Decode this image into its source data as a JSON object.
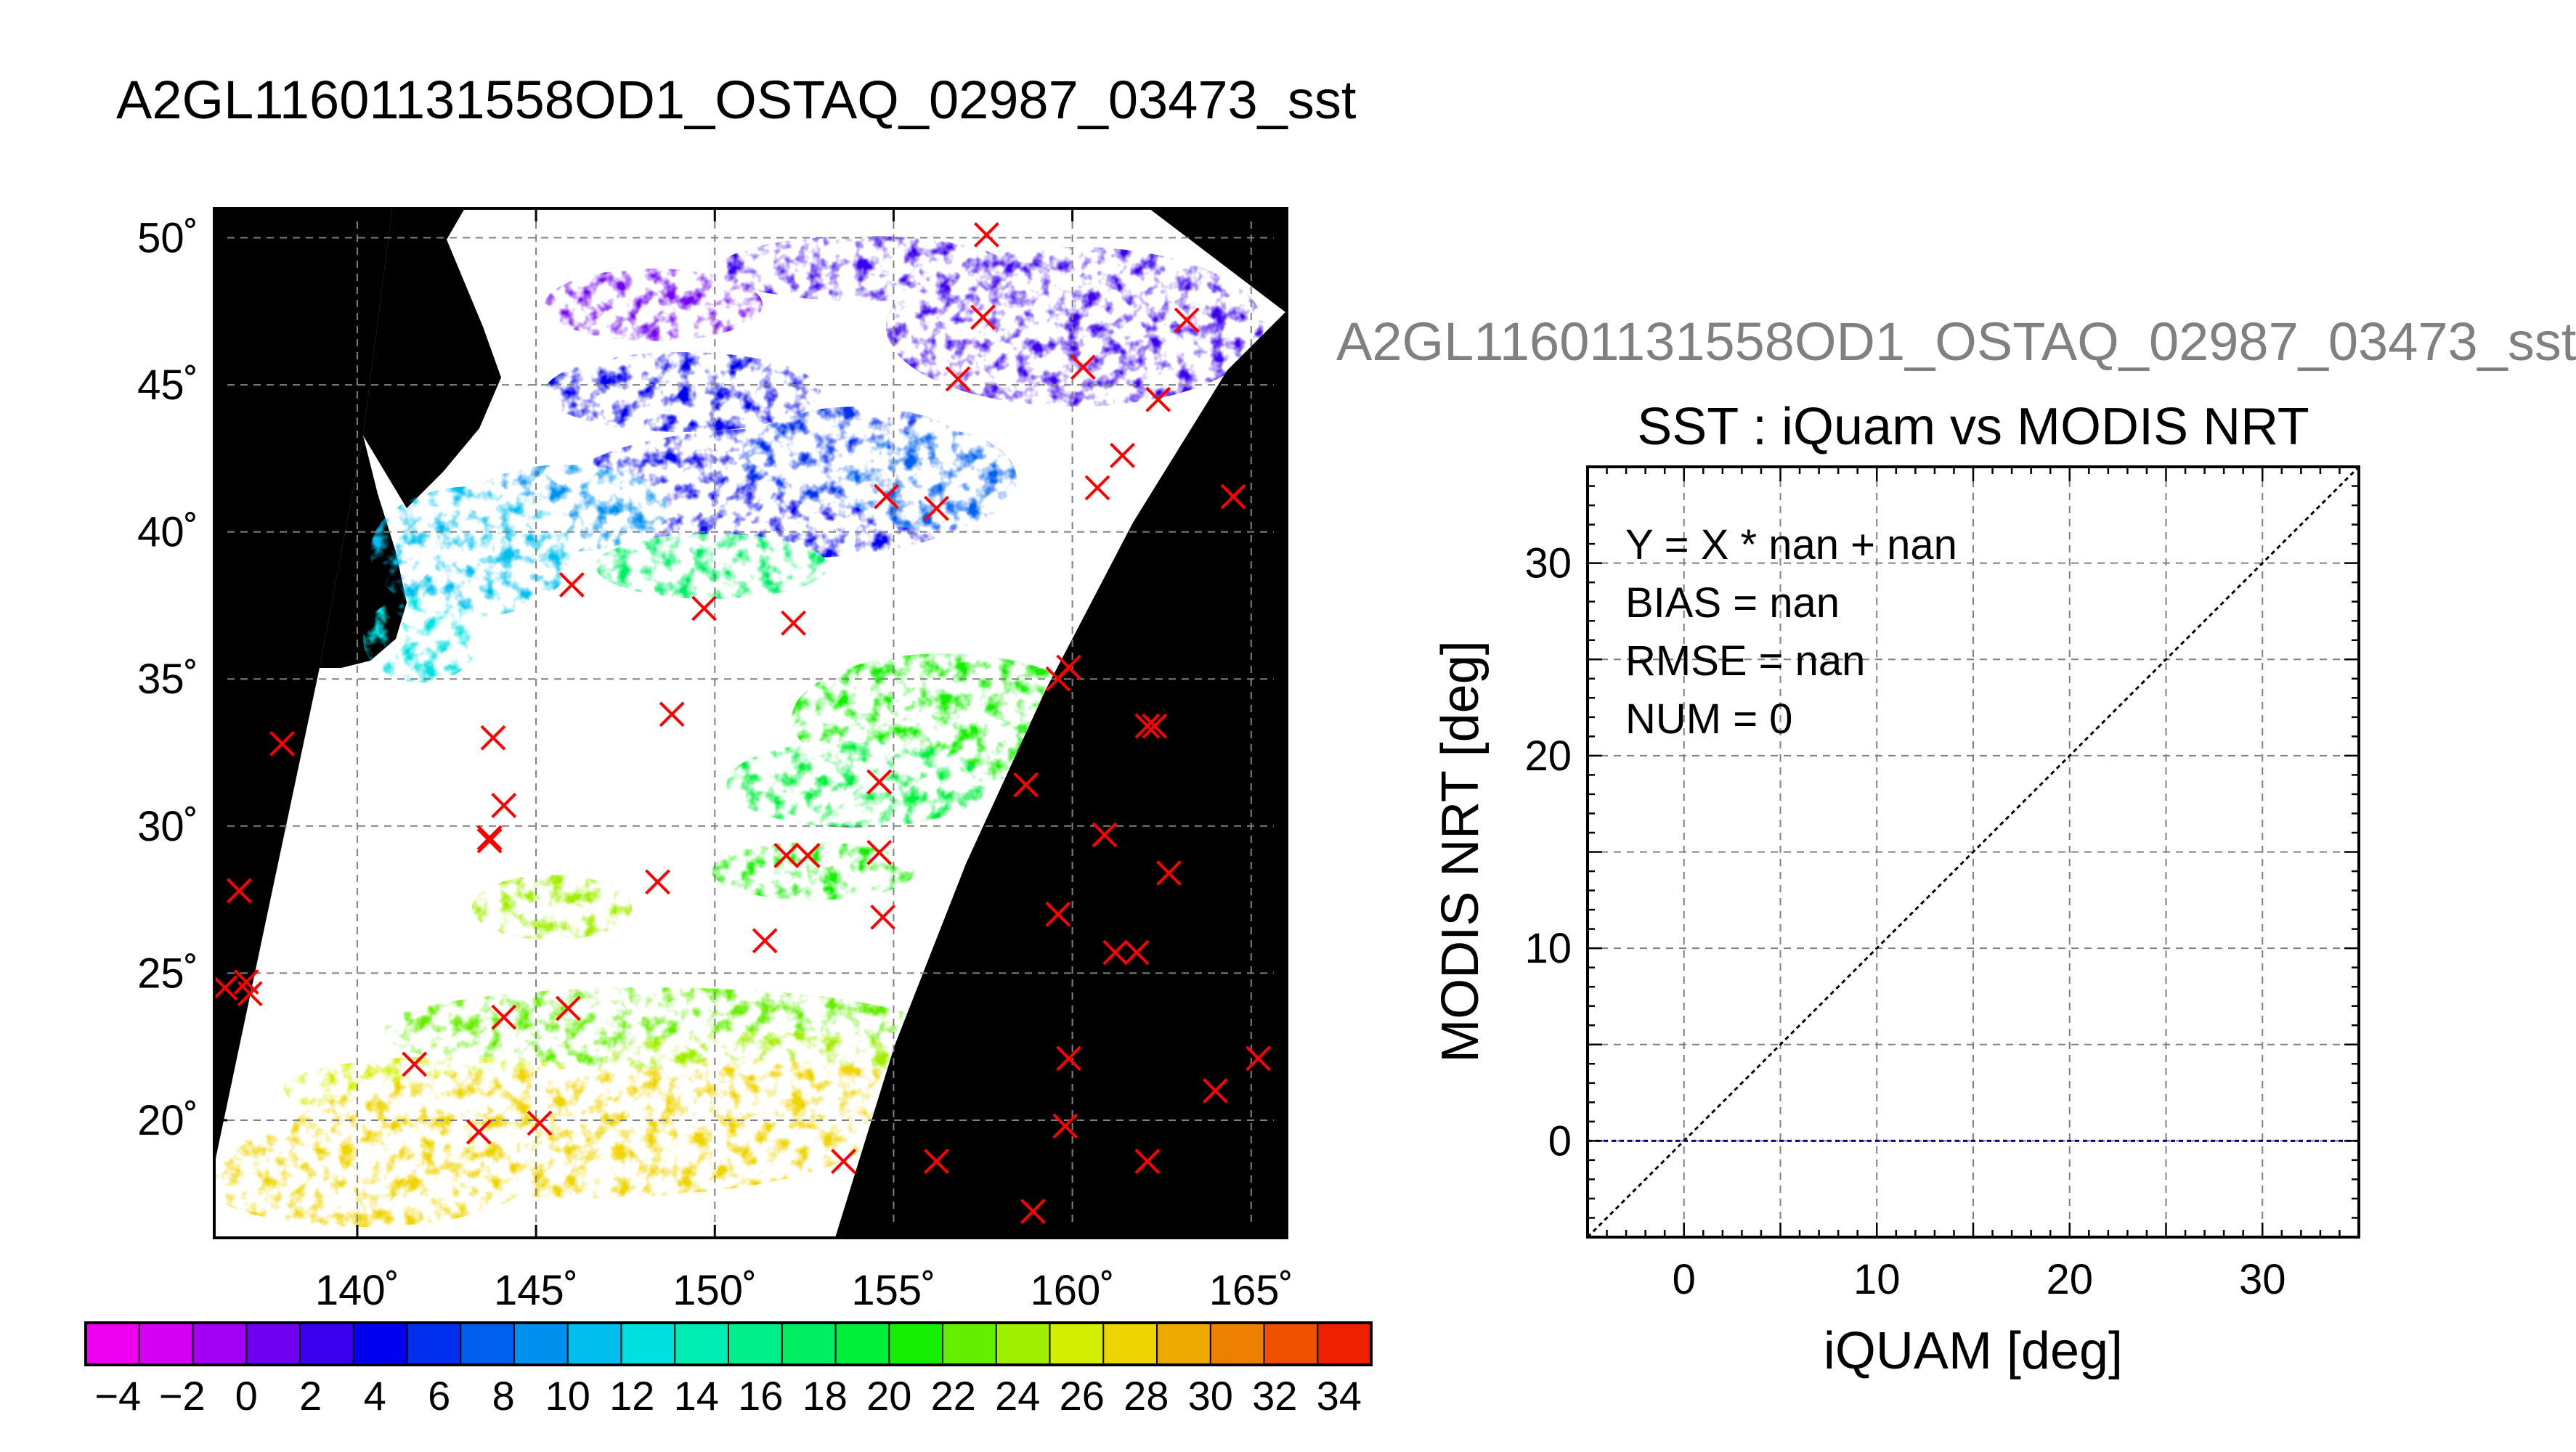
{
  "page_title": "A2GL11601131558OD1_OSTAQ_02987_03473_sst",
  "right_title": "A2GL11601131558OD1_OSTAQ_02987_03473_sst",
  "colors": {
    "background": "#ffffff",
    "land": "#000000",
    "marker": "#ff0000",
    "grid": "#808080",
    "fit_line": "#00008b",
    "identity_line": "#000000"
  },
  "chart_data": [
    {
      "type": "map",
      "xlim": [
        136,
        166
      ],
      "ylim": [
        16,
        51
      ],
      "x_ticks": [
        140,
        145,
        150,
        155,
        160,
        165
      ],
      "y_ticks": [
        20,
        25,
        30,
        35,
        40,
        45,
        50
      ],
      "x_tick_labels": [
        "140˚",
        "145˚",
        "150˚",
        "155˚",
        "160˚",
        "165˚"
      ],
      "y_tick_labels": [
        "20˚",
        "25˚",
        "30˚",
        "35˚",
        "40˚",
        "45˚",
        "50˚"
      ],
      "grid": true,
      "buoy_marker": "x",
      "buoys": [
        [
          157.6,
          50.1
        ],
        [
          157.5,
          47.3
        ],
        [
          156.8,
          45.2
        ],
        [
          160.3,
          45.6
        ],
        [
          163.2,
          47.2
        ],
        [
          162.4,
          44.5
        ],
        [
          161.4,
          42.6
        ],
        [
          160.7,
          41.5
        ],
        [
          164.5,
          41.2
        ],
        [
          154.8,
          41.2
        ],
        [
          156.2,
          40.8
        ],
        [
          146.0,
          38.2
        ],
        [
          149.7,
          37.4
        ],
        [
          152.2,
          36.9
        ],
        [
          159.6,
          35.0
        ],
        [
          159.9,
          35.4
        ],
        [
          137.9,
          32.8
        ],
        [
          143.8,
          33.0
        ],
        [
          148.8,
          33.8
        ],
        [
          162.3,
          33.4
        ],
        [
          162.1,
          33.4
        ],
        [
          144.1,
          30.7
        ],
        [
          143.7,
          29.5
        ],
        [
          143.7,
          29.6
        ],
        [
          154.6,
          31.5
        ],
        [
          158.7,
          31.4
        ],
        [
          160.9,
          29.7
        ],
        [
          152.0,
          29.0
        ],
        [
          152.6,
          29.0
        ],
        [
          154.6,
          29.1
        ],
        [
          148.4,
          28.1
        ],
        [
          136.7,
          27.8
        ],
        [
          162.7,
          28.4
        ],
        [
          154.7,
          26.9
        ],
        [
          159.6,
          27.0
        ],
        [
          151.4,
          26.1
        ],
        [
          161.2,
          25.7
        ],
        [
          161.8,
          25.7
        ],
        [
          136.3,
          24.5
        ],
        [
          136.9,
          24.7
        ],
        [
          137.0,
          24.3
        ],
        [
          145.9,
          23.8
        ],
        [
          144.1,
          23.5
        ],
        [
          141.6,
          21.9
        ],
        [
          159.9,
          22.1
        ],
        [
          165.2,
          22.1
        ],
        [
          164.0,
          21.0
        ],
        [
          143.4,
          19.6
        ],
        [
          145.1,
          19.9
        ],
        [
          159.8,
          19.8
        ],
        [
          153.6,
          18.6
        ],
        [
          156.2,
          18.6
        ],
        [
          162.1,
          18.6
        ],
        [
          158.9,
          16.9
        ]
      ]
    },
    {
      "type": "colorbar",
      "min": -5,
      "max": 35,
      "step": 2,
      "tick_labels": [
        "−4",
        "−2",
        "0",
        "2",
        "4",
        "6",
        "8",
        "10",
        "12",
        "14",
        "16",
        "18",
        "20",
        "22",
        "24",
        "26",
        "28",
        "30",
        "32",
        "34"
      ],
      "colors": [
        "#ee00ee",
        "#d300f4",
        "#a200f4",
        "#6f00f0",
        "#3a00ee",
        "#0000ee",
        "#0030ee",
        "#0060ee",
        "#0090ee",
        "#00bfee",
        "#00e0e0",
        "#00eeb4",
        "#00ee8c",
        "#00ee64",
        "#00ee3c",
        "#14ee00",
        "#64ee00",
        "#a0ee00",
        "#d4ee00",
        "#eed400",
        "#eeaa00",
        "#ee8000",
        "#ee5000",
        "#ee2000"
      ]
    },
    {
      "type": "scatter",
      "title": "SST : iQuam vs MODIS NRT",
      "xlabel": "iQUAM [deg]",
      "ylabel": "MODIS NRT [deg]",
      "xlim": [
        -5,
        35
      ],
      "ylim": [
        -5,
        35
      ],
      "x_ticks": [
        0,
        10,
        20,
        30
      ],
      "y_ticks": [
        0,
        10,
        20,
        30
      ],
      "x_tick_labels": [
        "0",
        "10",
        "20",
        "30"
      ],
      "y_tick_labels": [
        "0",
        "10",
        "20",
        "30"
      ],
      "grid": true,
      "points": [],
      "stats": [
        "Y = X * nan + nan",
        "BIAS = nan",
        "RMSE = nan",
        "NUM = 0"
      ],
      "fit_line_y": 0
    }
  ]
}
